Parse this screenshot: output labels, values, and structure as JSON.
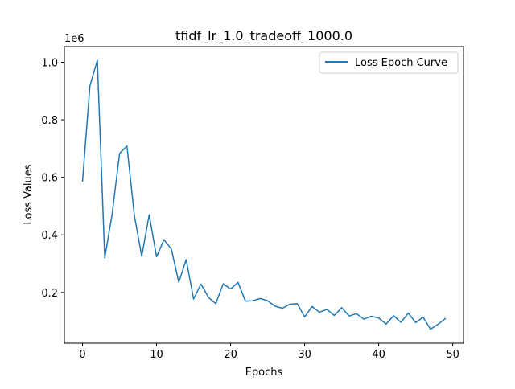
{
  "chart_data": {
    "type": "line",
    "title": "tfidf_lr_1.0_tradeoff_1000.0",
    "xlabel": "Epochs",
    "ylabel": "Loss Values",
    "y_multiplier_label": "1e6",
    "xlim": [
      -2.45,
      51.45
    ],
    "ylim": [
      0.0235,
      1.0545
    ],
    "x_ticks": [
      0,
      10,
      20,
      30,
      40,
      50
    ],
    "x_tick_labels": [
      "0",
      "10",
      "20",
      "30",
      "40",
      "50"
    ],
    "y_ticks": [
      0.2,
      0.4,
      0.6,
      0.8,
      1.0
    ],
    "y_tick_labels": [
      "0.2",
      "0.4",
      "0.6",
      "0.8",
      "1.0"
    ],
    "grid": false,
    "legend_position": "upper right",
    "colors": {
      "series": "#1f77b4",
      "axes": "#000000",
      "legend_border": "#cccccc"
    },
    "series": [
      {
        "name": "Loss Epoch Curve",
        "x": [
          0,
          1,
          2,
          3,
          4,
          5,
          6,
          7,
          8,
          9,
          10,
          11,
          12,
          13,
          14,
          15,
          16,
          17,
          18,
          19,
          20,
          21,
          22,
          23,
          24,
          25,
          26,
          27,
          28,
          29,
          30,
          31,
          32,
          33,
          34,
          35,
          36,
          37,
          38,
          39,
          40,
          41,
          42,
          43,
          44,
          45,
          46,
          47,
          48,
          49
        ],
        "values": [
          0.587,
          0.918,
          1.007,
          0.32,
          0.472,
          0.683,
          0.709,
          0.467,
          0.326,
          0.47,
          0.324,
          0.383,
          0.351,
          0.235,
          0.314,
          0.177,
          0.229,
          0.183,
          0.161,
          0.23,
          0.212,
          0.235,
          0.17,
          0.171,
          0.179,
          0.171,
          0.152,
          0.145,
          0.159,
          0.161,
          0.115,
          0.151,
          0.131,
          0.141,
          0.12,
          0.147,
          0.118,
          0.126,
          0.107,
          0.117,
          0.111,
          0.09,
          0.119,
          0.096,
          0.128,
          0.095,
          0.114,
          0.072,
          0.089,
          0.109
        ]
      }
    ]
  }
}
